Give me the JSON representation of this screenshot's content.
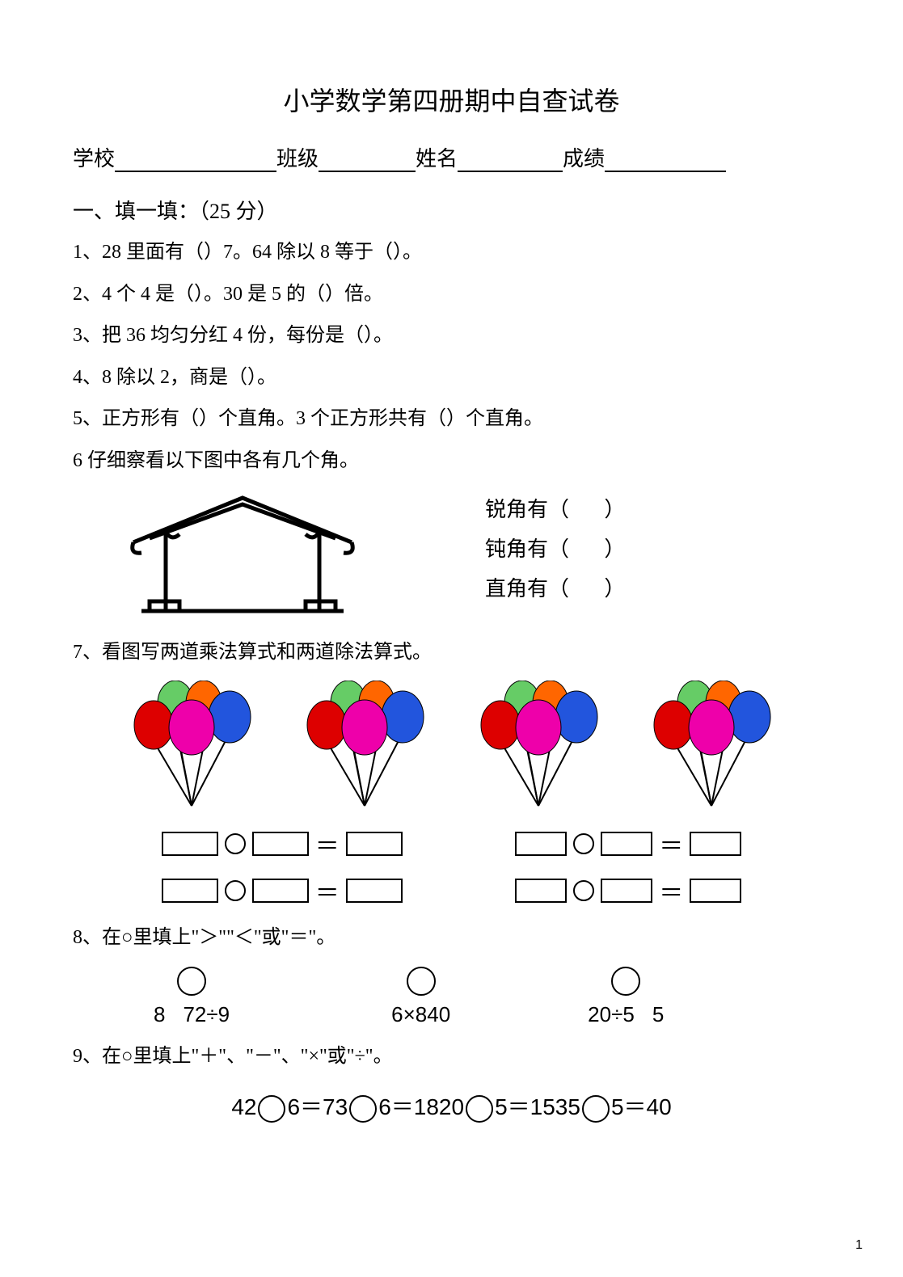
{
  "doc": {
    "title": "小学数学第四册期中自查试卷",
    "header": {
      "school_label": "学校",
      "class_label": "班级",
      "name_label": "姓名",
      "score_label": "成绩"
    },
    "section1_title": "一、填一填：（25 分）",
    "q1": "1、28 里面有（）7。64 除以 8 等于（）。",
    "q2": "2、4 个 4 是（）。30 是 5 的（）倍。",
    "q3": "3、把 36 均匀分红 4 份，每份是（）。",
    "q4": "4、8 除以 2，商是（）。",
    "q5": "5、正方形有（）个直角。3 个正方形共有（）个直角。",
    "q6": "6 仔细察看以下图中各有几个角。",
    "q6_labels": {
      "acute": "锐角有（",
      "obtuse": "钝角有（",
      "right": "直角有（",
      "paren_close": "）"
    },
    "q7": "7、看图写两道乘法算式和两道除法算式。",
    "q8": "8、在○里填上\"＞\"\"＜\"或\"＝\"。",
    "q8_items": {
      "a_left": "8",
      "a_right": "72÷9",
      "b": "6×840",
      "c_left": "20÷5",
      "c_right": "5"
    },
    "q9": "9、在○里填上\"＋\"、\"－\"、\"×\"或\"÷\"。",
    "q9_parts": {
      "p1": "42",
      "p2": "6＝73",
      "p3": "6＝1820",
      "p4": "5＝1535",
      "p5": "5＝40"
    },
    "page_number": "1"
  },
  "balloon_colors": {
    "green": "#66cc66",
    "orange": "#ff6600",
    "blue": "#2255dd",
    "red": "#dd0000",
    "magenta": "#ee00aa"
  },
  "equals_sign": "＝"
}
